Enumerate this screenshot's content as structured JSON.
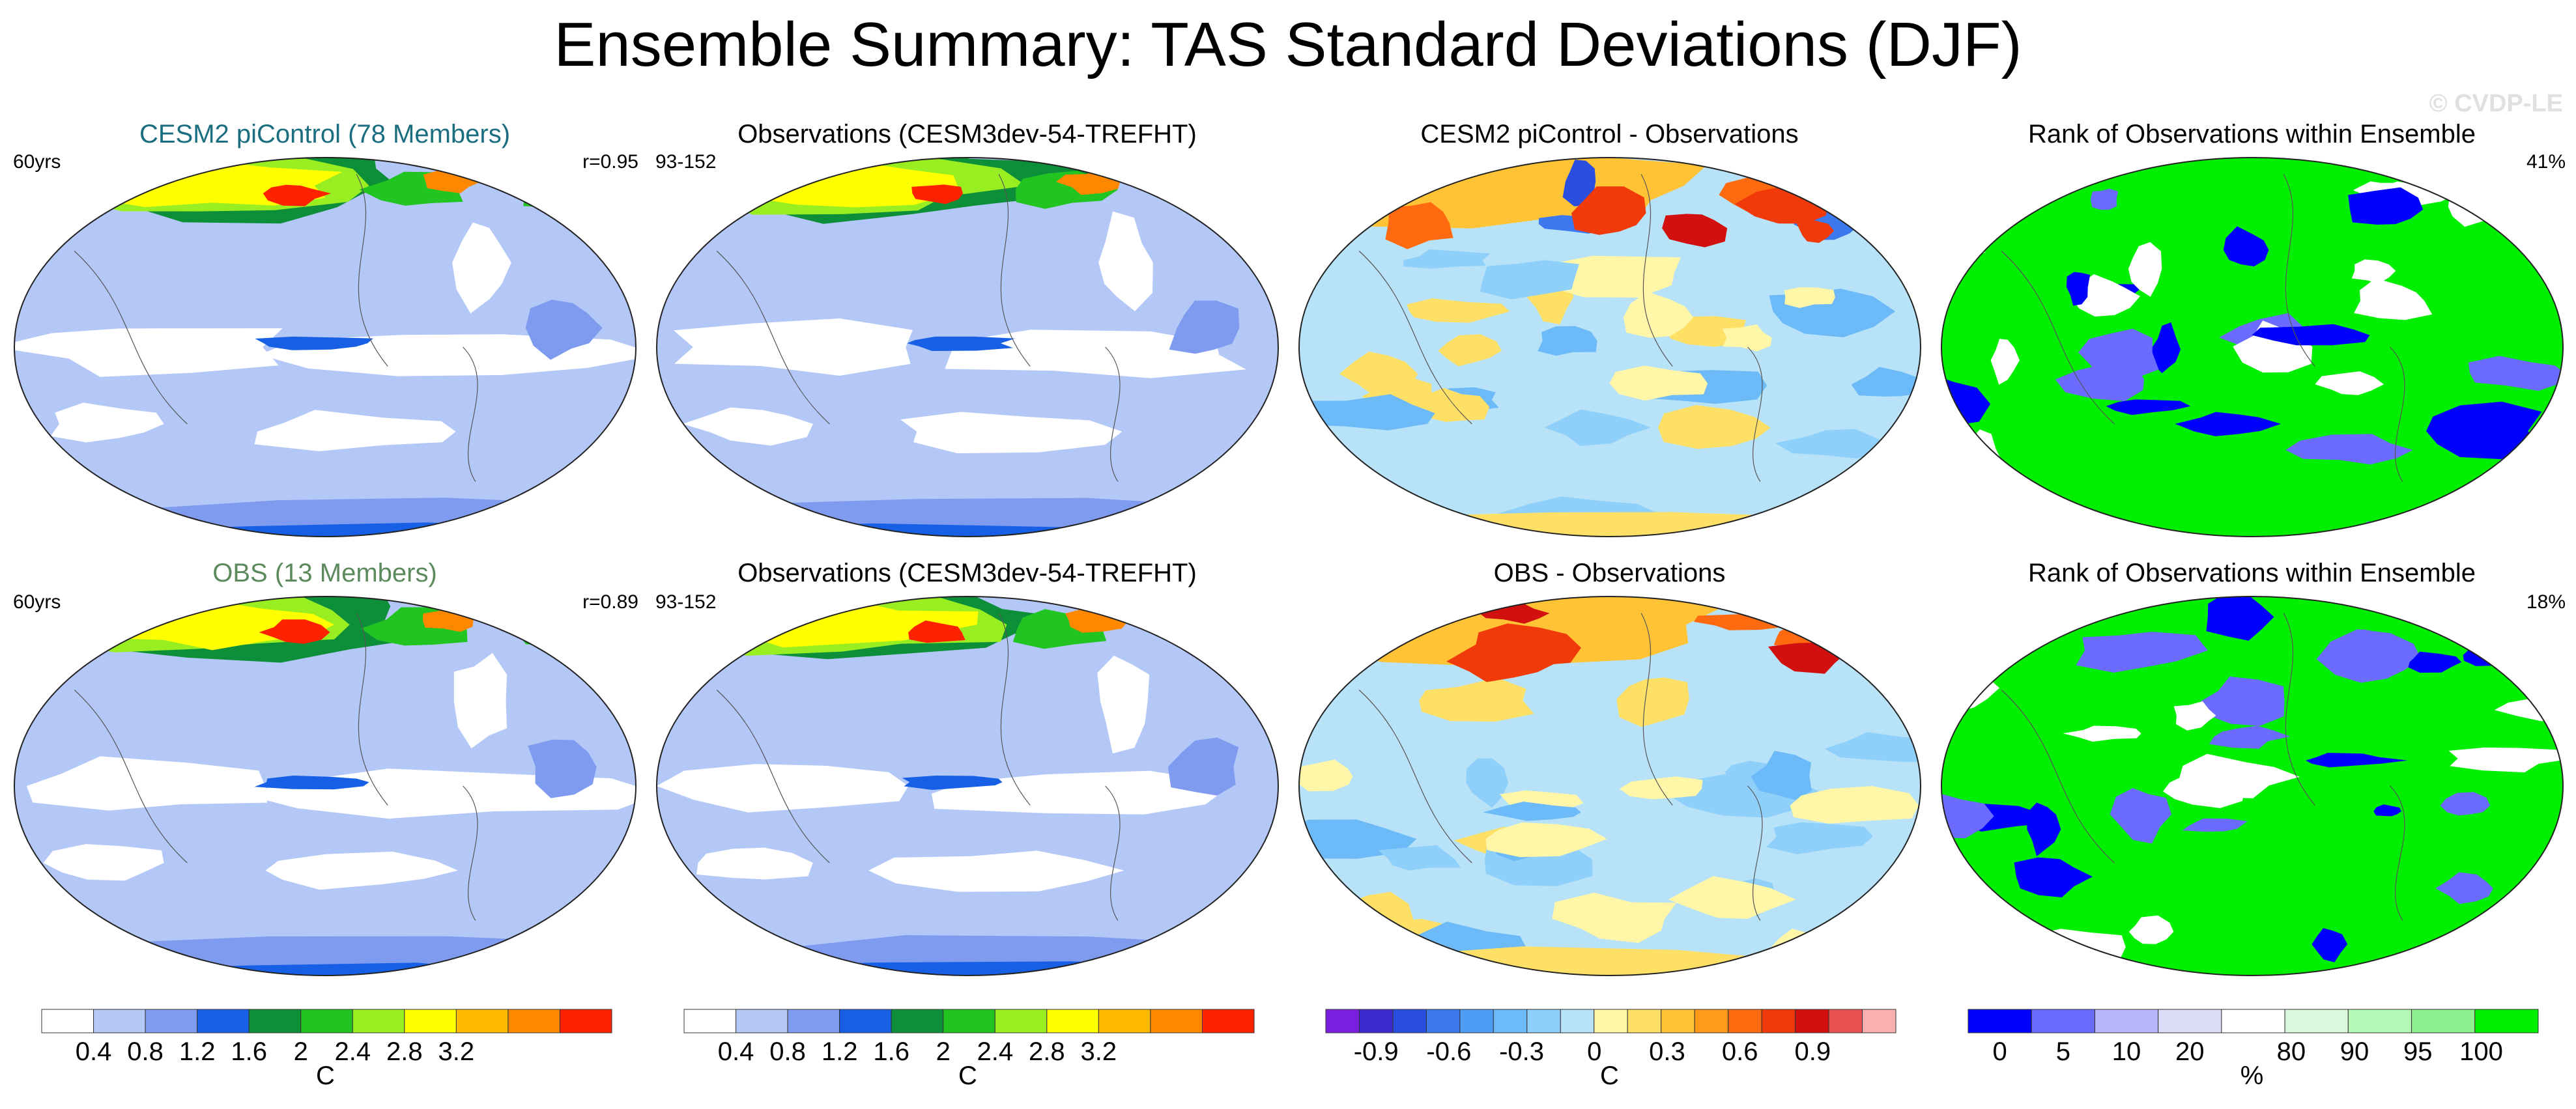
{
  "figure": {
    "title": "Ensemble Summary: TAS Standard Deviations (DJF)",
    "watermark": "© CVDP-LE"
  },
  "rows": [
    {
      "panels": [
        {
          "title": "CESM2 piControl (78 Members)",
          "title_color": "#1a6e80",
          "left_label": "60yrs",
          "right_label": "r=0.95",
          "palette": "std"
        },
        {
          "title": "Observations (CESM3dev-54-TREFHT)",
          "title_color": "#000000",
          "left_label": "93-152",
          "right_label": "",
          "palette": "std"
        },
        {
          "title": "CESM2 piControl - Observations",
          "title_color": "#000000",
          "left_label": "",
          "right_label": "",
          "palette": "diff"
        },
        {
          "title": "Rank of Observations within Ensemble",
          "title_color": "#000000",
          "left_label": "",
          "right_label": "41%",
          "palette": "rank"
        }
      ]
    },
    {
      "panels": [
        {
          "title": "OBS (13 Members)",
          "title_color": "#5d8a5d",
          "left_label": "60yrs",
          "right_label": "r=0.89",
          "palette": "std"
        },
        {
          "title": "Observations (CESM3dev-54-TREFHT)",
          "title_color": "#000000",
          "left_label": "93-152",
          "right_label": "",
          "palette": "std"
        },
        {
          "title": "OBS - Observations",
          "title_color": "#000000",
          "left_label": "",
          "right_label": "",
          "palette": "diff"
        },
        {
          "title": "Rank of Observations within Ensemble",
          "title_color": "#000000",
          "left_label": "",
          "right_label": "18%",
          "palette": "rank"
        }
      ]
    }
  ],
  "chart_data": [
    {
      "type": "heatmap",
      "description": "Global map panels (Robinson-like projection) of DJF surface air temperature standard deviation",
      "colorbars": [
        {
          "id": "std",
          "unit": "C",
          "colors": [
            "#ffffff",
            "#b4c8f8",
            "#7f9bf0",
            "#1760e6",
            "#0d8f3a",
            "#22c422",
            "#99ee22",
            "#ffff00",
            "#ffbb00",
            "#ff8800",
            "#ff2200"
          ],
          "tick_labels": [
            "0.4",
            "0.8",
            "1.2",
            "1.6",
            "2",
            "2.4",
            "2.8",
            "3.2"
          ],
          "boundaries": [
            0.4,
            0.8,
            1.2,
            1.6,
            2.0,
            2.4,
            2.8,
            3.2
          ]
        },
        {
          "id": "std2",
          "unit": "C",
          "colors": [
            "#ffffff",
            "#b4c8f8",
            "#7f9bf0",
            "#1760e6",
            "#0d8f3a",
            "#22c422",
            "#99ee22",
            "#ffff00",
            "#ffbb00",
            "#ff8800",
            "#ff2200"
          ],
          "tick_labels": [
            "0.4",
            "0.8",
            "1.2",
            "1.6",
            "2",
            "2.4",
            "2.8",
            "3.2"
          ],
          "boundaries": [
            0.4,
            0.8,
            1.2,
            1.6,
            2.0,
            2.4,
            2.8,
            3.2
          ]
        },
        {
          "id": "diff",
          "unit": "C",
          "colors": [
            "#7a1fe0",
            "#3c2bd0",
            "#2a4fe0",
            "#3c78ee",
            "#4f9cf5",
            "#6cbaf8",
            "#8fd0fa",
            "#b7e2f7",
            "#fff6a8",
            "#ffe066",
            "#ffc335",
            "#ff9a1a",
            "#ff6a10",
            "#f03a0a",
            "#d21010",
            "#e85050",
            "#f8b0b0"
          ],
          "tick_labels": [
            "-0.9",
            "-0.6",
            "-0.3",
            "0",
            "0.3",
            "0.6",
            "0.9"
          ],
          "boundaries": [
            -0.9,
            -0.6,
            -0.3,
            0,
            0.3,
            0.6,
            0.9
          ]
        },
        {
          "id": "rank",
          "unit": "%",
          "colors": [
            "#0000ff",
            "#6b6bff",
            "#b5b5f8",
            "#dcdcf8",
            "#ffffff",
            "#dcf8dc",
            "#b5f7b5",
            "#8ff08f",
            "#00ee00"
          ],
          "tick_labels": [
            "0",
            "5",
            "10",
            "20",
            "80",
            "90",
            "95",
            "100"
          ],
          "boundaries": [
            0,
            5,
            10,
            20,
            80,
            90,
            95,
            100
          ]
        }
      ]
    }
  ]
}
